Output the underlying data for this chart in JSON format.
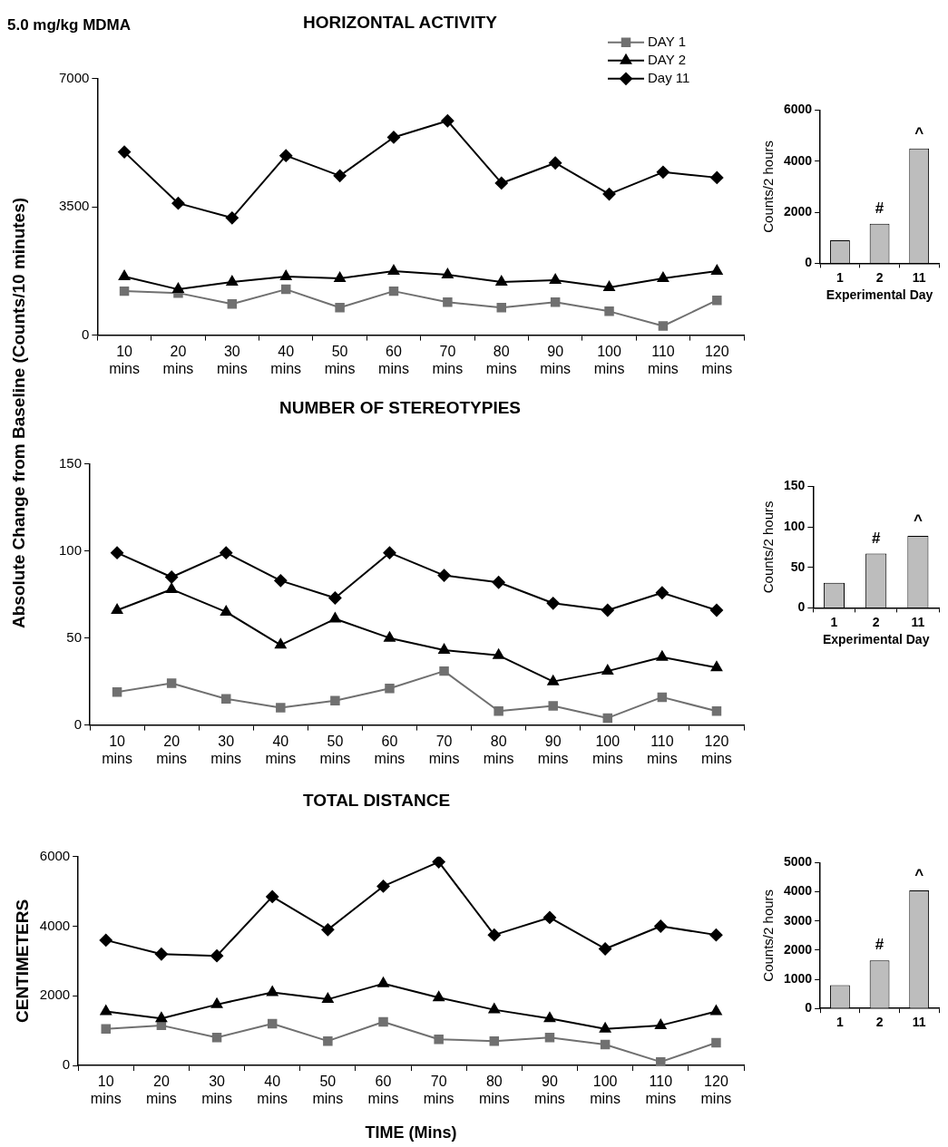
{
  "chart_data": [
    {
      "type": "line",
      "title": "HORIZONTAL ACTIVITY",
      "ylabel": "Absolute Change from Baseline (Counts/10 minutes)",
      "annotations": [
        "5.0 mg/kg MDMA"
      ],
      "categories": [
        "10 mins",
        "20 mins",
        "30 mins",
        "40 mins",
        "50 mins",
        "60 mins",
        "70 mins",
        "80 mins",
        "90 mins",
        "100 mins",
        "110 mins",
        "120 mins"
      ],
      "ylim": [
        0,
        7000
      ],
      "yticks": [
        0,
        3500,
        7000
      ],
      "legend": "top right",
      "series": [
        {
          "name": "DAY 1",
          "color": "#707070",
          "marker": "square",
          "values": [
            1200,
            1150,
            850,
            1250,
            750,
            1200,
            900,
            750,
            900,
            650,
            250,
            950
          ]
        },
        {
          "name": "DAY 2",
          "color": "#000000",
          "marker": "triangle",
          "values": [
            1600,
            1250,
            1450,
            1600,
            1550,
            1750,
            1650,
            1450,
            1500,
            1300,
            1550,
            1750
          ]
        },
        {
          "name": "Day 11",
          "color": "#000000",
          "marker": "diamond",
          "values": [
            5000,
            3600,
            3200,
            4900,
            4350,
            5400,
            5850,
            4150,
            4700,
            3850,
            4450,
            4300
          ]
        }
      ]
    },
    {
      "type": "bar",
      "categories": [
        "1",
        "2",
        "11"
      ],
      "values": [
        900,
        1550,
        4500
      ],
      "color": "#bdbdbd",
      "ylim": [
        0,
        6000
      ],
      "yticks": [
        0,
        2000,
        4000,
        6000
      ],
      "xlabel": "Experimental Day",
      "ylabel": "Counts/2 hours",
      "annotations": [
        {
          "text": "#",
          "x": "2",
          "y": 1550
        },
        {
          "text": "^",
          "x": "11",
          "y": 4500
        }
      ]
    },
    {
      "type": "line",
      "title": "NUMBER OF STEREOTYPIES",
      "categories": [
        "10 mins",
        "20 mins",
        "30 mins",
        "40 mins",
        "50 mins",
        "60 mins",
        "70 mins",
        "80 mins",
        "90 mins",
        "100 mins",
        "110 mins",
        "120 mins"
      ],
      "ylim": [
        0,
        150
      ],
      "yticks": [
        0,
        50,
        100,
        150
      ],
      "series": [
        {
          "color": "#707070",
          "marker": "square",
          "values": [
            19,
            24,
            15,
            10,
            14,
            21,
            31,
            8,
            11,
            4,
            16,
            8
          ]
        },
        {
          "color": "#000000",
          "marker": "triangle",
          "values": [
            66,
            78,
            65,
            46,
            61,
            50,
            43,
            40,
            25,
            31,
            39,
            33
          ]
        },
        {
          "color": "#000000",
          "marker": "diamond",
          "values": [
            99,
            85,
            99,
            83,
            73,
            99,
            86,
            82,
            70,
            66,
            76,
            66
          ]
        }
      ]
    },
    {
      "type": "bar",
      "categories": [
        "1",
        "2",
        "11"
      ],
      "values": [
        31,
        67,
        89
      ],
      "color": "#bdbdbd",
      "ylim": [
        0,
        150
      ],
      "yticks": [
        0,
        50,
        100,
        150
      ],
      "xlabel": "Experimental Day",
      "ylabel": "Counts/2 hours",
      "annotations": [
        {
          "text": "#",
          "x": "2",
          "y": 67
        },
        {
          "text": "^",
          "x": "11",
          "y": 89
        }
      ]
    },
    {
      "type": "line",
      "title": "TOTAL DISTANCE",
      "xlabel": "TIME (Mins)",
      "ylabel": "CENTIMETERS",
      "categories": [
        "10 mins",
        "20 mins",
        "30 mins",
        "40 mins",
        "50 mins",
        "60 mins",
        "70 mins",
        "80 mins",
        "90 mins",
        "100 mins",
        "110 mins",
        "120 mins"
      ],
      "ylim": [
        0,
        6000
      ],
      "yticks": [
        0,
        2000,
        4000,
        6000
      ],
      "series": [
        {
          "color": "#707070",
          "marker": "square",
          "values": [
            1050,
            1150,
            800,
            1200,
            700,
            1250,
            750,
            700,
            800,
            600,
            100,
            650
          ]
        },
        {
          "color": "#000000",
          "marker": "triangle",
          "values": [
            1550,
            1350,
            1750,
            2100,
            1900,
            2350,
            1950,
            1600,
            1350,
            1050,
            1150,
            1550
          ]
        },
        {
          "color": "#000000",
          "marker": "diamond",
          "values": [
            3600,
            3200,
            3150,
            4850,
            3900,
            5150,
            5850,
            3750,
            4250,
            3350,
            4000,
            3750
          ]
        }
      ]
    },
    {
      "type": "bar",
      "categories": [
        "1",
        "2",
        "11"
      ],
      "values": [
        800,
        1650,
        4050
      ],
      "color": "#bdbdbd",
      "ylim": [
        0,
        5000
      ],
      "yticks": [
        0,
        1000,
        2000,
        3000,
        4000,
        5000
      ],
      "ylabel": "Counts/2 hours",
      "annotations": [
        {
          "text": "#",
          "x": "2",
          "y": 1650
        },
        {
          "text": "^",
          "x": "11",
          "y": 4050
        }
      ]
    }
  ]
}
